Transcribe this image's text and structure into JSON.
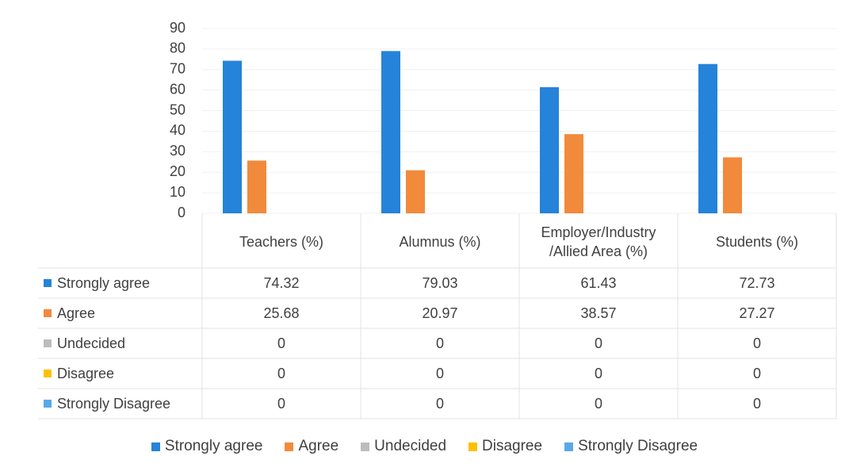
{
  "chart_data": {
    "type": "bar",
    "categories": [
      "Teachers (%)",
      "Alumnus (%)",
      "Employer/Industry /Allied Area (%)",
      "Students (%)"
    ],
    "series": [
      {
        "name": "Strongly agree",
        "color": "#2583d9",
        "values": [
          74.32,
          79.03,
          61.43,
          72.73
        ]
      },
      {
        "name": "Agree",
        "color": "#f28a3c",
        "values": [
          25.68,
          20.97,
          38.57,
          27.27
        ]
      },
      {
        "name": "Undecided",
        "color": "#bdbdbd",
        "values": [
          0,
          0,
          0,
          0
        ]
      },
      {
        "name": "Disagree",
        "color": "#ffc000",
        "values": [
          0,
          0,
          0,
          0
        ]
      },
      {
        "name": "Strongly Disagree",
        "color": "#5aa8e8",
        "values": [
          0,
          0,
          0,
          0
        ]
      }
    ],
    "ylim": [
      0,
      90
    ],
    "yticks": [
      0,
      10,
      20,
      30,
      40,
      50,
      60,
      70,
      80,
      90
    ],
    "grid": true,
    "data_table": true,
    "legend": "bottom"
  }
}
